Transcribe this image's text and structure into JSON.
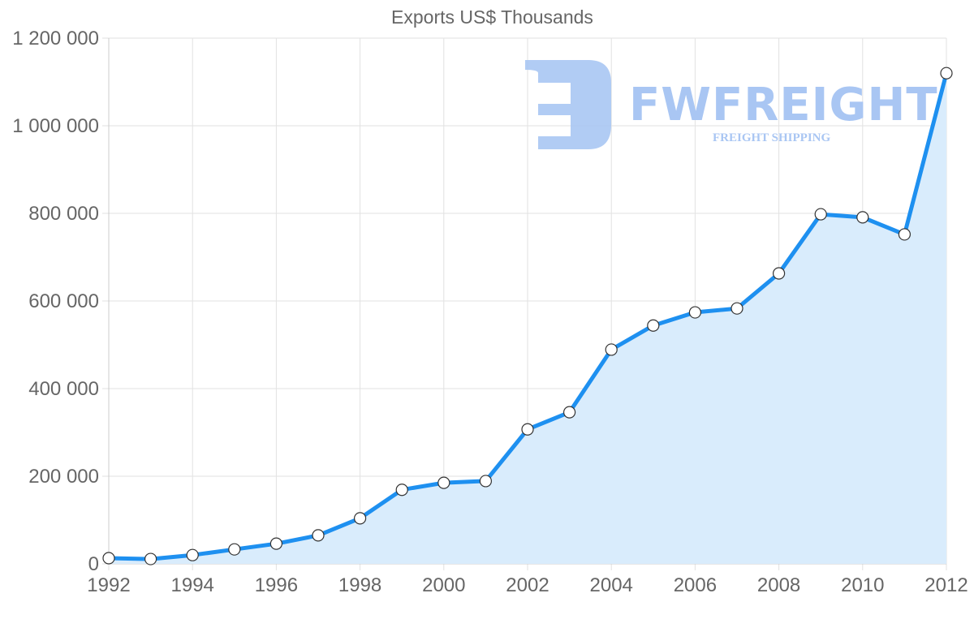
{
  "chart_data": {
    "type": "line",
    "title": "Exports US$ Thousands",
    "xlabel": "",
    "ylabel": "",
    "x": [
      1992,
      1993,
      1994,
      1995,
      1996,
      1997,
      1998,
      1999,
      2000,
      2001,
      2002,
      2003,
      2004,
      2005,
      2006,
      2007,
      2008,
      2009,
      2010,
      2011,
      2012
    ],
    "series": [
      {
        "name": "Exports US$ Thousands",
        "values": [
          13000,
          11000,
          20000,
          33000,
          46000,
          65000,
          104000,
          169000,
          185000,
          189000,
          307000,
          346000,
          489000,
          544000,
          574000,
          583000,
          663000,
          798000,
          791000,
          752000,
          1120000
        ],
        "color": "#1e90f0",
        "fill": "#d9ecfc"
      }
    ],
    "ylim": [
      0,
      1200000
    ],
    "yticks": [
      0,
      200000,
      400000,
      600000,
      800000,
      1000000,
      1200000
    ],
    "ytick_labels": [
      "0",
      "200 000",
      "400 000",
      "600 000",
      "800 000",
      "1 000 000",
      "1 200 000"
    ],
    "xticks": [
      1992,
      1994,
      1996,
      1998,
      2000,
      2002,
      2004,
      2006,
      2008,
      2010,
      2012
    ],
    "xtick_labels": [
      "1992",
      "1994",
      "1996",
      "1998",
      "2000",
      "2002",
      "2004",
      "2006",
      "2008",
      "2010",
      "2012"
    ],
    "grid": true,
    "legend": null
  },
  "watermark": {
    "brand": "FWFREIGHT",
    "tagline": "FREIGHT SHIPPING",
    "color": "#a9c6f3"
  }
}
